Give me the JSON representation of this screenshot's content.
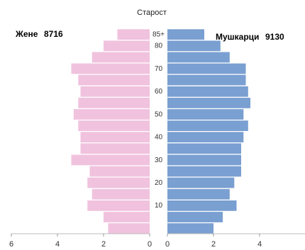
{
  "chart_data": {
    "type": "bar",
    "orientation": "horizontal-population-pyramid",
    "title": "Старост",
    "center_tick_labels": [
      "85+",
      "80",
      "70",
      "60",
      "50",
      "40",
      "30",
      "20",
      "10"
    ],
    "left_group": {
      "label": "Жене",
      "total": "8716",
      "color": "#f0c2de"
    },
    "right_group": {
      "label": "Мушкарци",
      "total": "9130",
      "color": "#7a9fd1"
    },
    "age_groups": [
      "0-4",
      "5-9",
      "10-14",
      "15-19",
      "20-24",
      "25-29",
      "30-34",
      "35-39",
      "40-44",
      "45-49",
      "50-54",
      "55-59",
      "60-64",
      "65-69",
      "70-74",
      "75-79",
      "80-84",
      "85+"
    ],
    "series": [
      {
        "name": "Жене",
        "values": [
          1.8,
          2.0,
          2.7,
          2.5,
          2.7,
          2.6,
          3.4,
          3.0,
          3.0,
          3.1,
          3.3,
          3.1,
          3.0,
          3.1,
          3.4,
          2.5,
          2.0,
          1.4
        ]
      },
      {
        "name": "Мушкарци",
        "values": [
          2.0,
          2.4,
          3.0,
          2.7,
          2.9,
          3.2,
          3.2,
          3.2,
          3.3,
          3.5,
          3.3,
          3.6,
          3.5,
          3.4,
          3.4,
          2.7,
          2.3,
          1.6
        ]
      }
    ],
    "xlim": [
      0,
      6
    ],
    "x_tick_values": [
      6,
      4,
      2,
      0
    ],
    "right_x_tick_values": [
      0,
      2,
      4
    ],
    "legend": "top",
    "grid": false
  }
}
